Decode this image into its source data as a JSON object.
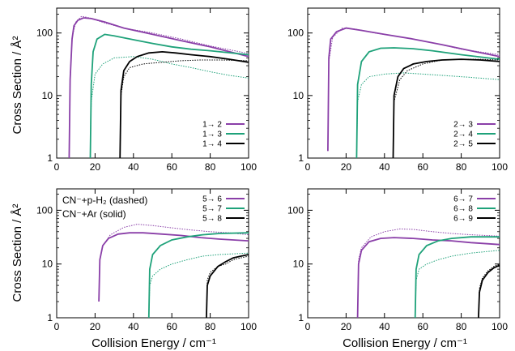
{
  "figure": {
    "ylabel": "Cross Section / Å²",
    "xlabel": "Collision Energy / cm⁻¹",
    "annotation": [
      "CN⁻+p-H₂ (dashed)",
      "CN⁻+Ar (solid)"
    ]
  },
  "chart_data": [
    {
      "type": "line",
      "panel": "top-left",
      "xlim": [
        0,
        100
      ],
      "ylim": [
        1,
        250
      ],
      "yscale": "log",
      "xticks": [
        "0",
        "20",
        "40",
        "60",
        "80",
        "100"
      ],
      "yticks": [
        "1",
        "10",
        "100"
      ],
      "legend": "bottom-right",
      "series": [
        {
          "name": "1→ 2",
          "color": "#8a3fa8",
          "solid": [
            [
              6.5,
              1
            ],
            [
              7,
              18
            ],
            [
              8,
              80
            ],
            [
              9,
              130
            ],
            [
              11,
              160
            ],
            [
              14,
              175
            ],
            [
              18,
              170
            ],
            [
              25,
              150
            ],
            [
              35,
              120
            ],
            [
              50,
              95
            ],
            [
              65,
              75
            ],
            [
              80,
              60
            ],
            [
              100,
              42
            ]
          ],
          "dashed": [
            [
              6.5,
              1
            ],
            [
              7,
              20
            ],
            [
              8,
              85
            ],
            [
              10,
              150
            ],
            [
              13,
              185
            ],
            [
              17,
              175
            ],
            [
              25,
              145
            ],
            [
              35,
              120
            ],
            [
              50,
              100
            ],
            [
              65,
              80
            ],
            [
              80,
              62
            ],
            [
              100,
              47
            ]
          ]
        },
        {
          "name": "1→ 3",
          "color": "#1fa27a",
          "solid": [
            [
              17.5,
              1
            ],
            [
              18,
              15
            ],
            [
              19,
              50
            ],
            [
              21,
              80
            ],
            [
              25,
              95
            ],
            [
              30,
              90
            ],
            [
              40,
              78
            ],
            [
              50,
              68
            ],
            [
              60,
              60
            ],
            [
              70,
              55
            ],
            [
              80,
              52
            ],
            [
              100,
              45
            ]
          ],
          "dashed": [
            [
              17.5,
              1
            ],
            [
              18,
              8
            ],
            [
              20,
              22
            ],
            [
              24,
              32
            ],
            [
              30,
              40
            ],
            [
              40,
              42
            ],
            [
              50,
              38
            ],
            [
              60,
              32
            ],
            [
              70,
              28
            ],
            [
              80,
              24
            ],
            [
              90,
              21
            ],
            [
              100,
              19
            ]
          ]
        },
        {
          "name": "1→ 4",
          "color": "#000000",
          "solid": [
            [
              33,
              1
            ],
            [
              33.5,
              12
            ],
            [
              35,
              25
            ],
            [
              38,
              35
            ],
            [
              42,
              42
            ],
            [
              48,
              48
            ],
            [
              55,
              50
            ],
            [
              62,
              48
            ],
            [
              70,
              45
            ],
            [
              80,
              42
            ],
            [
              90,
              38
            ],
            [
              100,
              34
            ]
          ],
          "dashed": [
            [
              33,
              1
            ],
            [
              33.5,
              10
            ],
            [
              35,
              20
            ],
            [
              38,
              28
            ],
            [
              45,
              32
            ],
            [
              55,
              34
            ],
            [
              65,
              36
            ],
            [
              75,
              37
            ],
            [
              85,
              37
            ],
            [
              100,
              36
            ]
          ]
        }
      ]
    },
    {
      "type": "line",
      "panel": "top-right",
      "xlim": [
        0,
        100
      ],
      "ylim": [
        1,
        250
      ],
      "yscale": "log",
      "xticks": [
        "0",
        "20",
        "40",
        "60",
        "80",
        "100"
      ],
      "yticks": [
        "1",
        "10",
        "100"
      ],
      "legend": "bottom-right",
      "series": [
        {
          "name": "2→ 3",
          "color": "#8a3fa8",
          "solid": [
            [
              10.5,
              1.3
            ],
            [
              11,
              40
            ],
            [
              12,
              80
            ],
            [
              15,
              105
            ],
            [
              20,
              120
            ],
            [
              28,
              110
            ],
            [
              40,
              95
            ],
            [
              55,
              80
            ],
            [
              70,
              65
            ],
            [
              85,
              52
            ],
            [
              100,
              42
            ]
          ],
          "dashed": [
            [
              10.5,
              1.3
            ],
            [
              11,
              35
            ],
            [
              13,
              85
            ],
            [
              18,
              120
            ],
            [
              25,
              115
            ],
            [
              35,
              100
            ],
            [
              50,
              85
            ],
            [
              65,
              70
            ],
            [
              80,
              55
            ],
            [
              100,
              45
            ]
          ]
        },
        {
          "name": "2→ 4",
          "color": "#1fa27a",
          "solid": [
            [
              25.5,
              1
            ],
            [
              26,
              15
            ],
            [
              28,
              35
            ],
            [
              32,
              50
            ],
            [
              38,
              57
            ],
            [
              45,
              58
            ],
            [
              55,
              56
            ],
            [
              65,
              52
            ],
            [
              80,
              45
            ],
            [
              100,
              38
            ]
          ],
          "dashed": [
            [
              25.5,
              1
            ],
            [
              26,
              8
            ],
            [
              28,
              15
            ],
            [
              32,
              20
            ],
            [
              40,
              22
            ],
            [
              50,
              23
            ],
            [
              60,
              22
            ],
            [
              70,
              21
            ],
            [
              80,
              20
            ],
            [
              100,
              18
            ]
          ]
        },
        {
          "name": "2→ 5",
          "color": "#000000",
          "solid": [
            [
              44.5,
              1
            ],
            [
              45,
              10
            ],
            [
              47,
              20
            ],
            [
              50,
              27
            ],
            [
              55,
              32
            ],
            [
              62,
              35
            ],
            [
              70,
              37
            ],
            [
              80,
              38
            ],
            [
              90,
              37
            ],
            [
              100,
              35
            ]
          ],
          "dashed": [
            [
              44.5,
              1
            ],
            [
              45,
              8
            ],
            [
              48,
              18
            ],
            [
              52,
              25
            ],
            [
              60,
              32
            ],
            [
              70,
              37
            ],
            [
              80,
              38
            ],
            [
              90,
              38
            ],
            [
              100,
              37
            ]
          ]
        }
      ]
    },
    {
      "type": "line",
      "panel": "bottom-left",
      "xlim": [
        0,
        100
      ],
      "ylim": [
        1,
        250
      ],
      "yscale": "log",
      "xticks": [
        "0",
        "20",
        "40",
        "60",
        "80",
        "100"
      ],
      "yticks": [
        "1",
        "10",
        "100"
      ],
      "legend": "top-right",
      "series": [
        {
          "name": "5→ 6",
          "color": "#8a3fa8",
          "solid": [
            [
              22,
              2
            ],
            [
              22.5,
              12
            ],
            [
              24,
              22
            ],
            [
              27,
              30
            ],
            [
              32,
              36
            ],
            [
              38,
              38
            ],
            [
              45,
              38
            ],
            [
              55,
              36
            ],
            [
              65,
              34
            ],
            [
              75,
              31
            ],
            [
              85,
              29
            ],
            [
              100,
              27
            ]
          ],
          "dashed": [
            [
              22,
              2
            ],
            [
              22.5,
              12
            ],
            [
              24,
              22
            ],
            [
              28,
              35
            ],
            [
              35,
              48
            ],
            [
              42,
              55
            ],
            [
              50,
              52
            ],
            [
              60,
              47
            ],
            [
              70,
              43
            ],
            [
              80,
              40
            ],
            [
              90,
              38
            ],
            [
              100,
              35
            ]
          ]
        },
        {
          "name": "5→ 7",
          "color": "#1fa27a",
          "solid": [
            [
              48,
              1
            ],
            [
              48.5,
              8
            ],
            [
              50,
              15
            ],
            [
              54,
              22
            ],
            [
              60,
              28
            ],
            [
              68,
              32
            ],
            [
              76,
              35
            ],
            [
              85,
              37
            ],
            [
              100,
              38
            ]
          ],
          "dashed": [
            [
              48,
              1
            ],
            [
              48.5,
              4
            ],
            [
              50,
              6
            ],
            [
              54,
              8
            ],
            [
              60,
              10
            ],
            [
              68,
              12
            ],
            [
              76,
              14
            ],
            [
              85,
              15
            ],
            [
              100,
              16
            ]
          ]
        },
        {
          "name": "5→ 8",
          "color": "#000000",
          "solid": [
            [
              78,
              1
            ],
            [
              78.5,
              4
            ],
            [
              80,
              6
            ],
            [
              84,
              9
            ],
            [
              88,
              11
            ],
            [
              92,
              13
            ],
            [
              96,
              14
            ],
            [
              100,
              15
            ]
          ],
          "dashed": [
            [
              78,
              1
            ],
            [
              78.5,
              5
            ],
            [
              80,
              7
            ],
            [
              84,
              9
            ],
            [
              88,
              10
            ],
            [
              92,
              12
            ],
            [
              96,
              13
            ],
            [
              100,
              14
            ]
          ]
        }
      ]
    },
    {
      "type": "line",
      "panel": "bottom-right",
      "xlim": [
        0,
        100
      ],
      "ylim": [
        1,
        250
      ],
      "yscale": "log",
      "xticks": [
        "0",
        "20",
        "40",
        "60",
        "80",
        "100"
      ],
      "yticks": [
        "1",
        "10",
        "100"
      ],
      "legend": "top-right",
      "series": [
        {
          "name": "6→ 7",
          "color": "#8a3fa8",
          "solid": [
            [
              26,
              1
            ],
            [
              26.5,
              10
            ],
            [
              28,
              18
            ],
            [
              32,
              26
            ],
            [
              38,
              30
            ],
            [
              45,
              31
            ],
            [
              55,
              30
            ],
            [
              65,
              28
            ],
            [
              75,
              27
            ],
            [
              85,
              25
            ],
            [
              100,
              23
            ]
          ],
          "dashed": [
            [
              26,
              1
            ],
            [
              26.5,
              12
            ],
            [
              28,
              20
            ],
            [
              33,
              32
            ],
            [
              40,
              40
            ],
            [
              48,
              45
            ],
            [
              55,
              44
            ],
            [
              65,
              40
            ],
            [
              75,
              37
            ],
            [
              85,
              35
            ],
            [
              100,
              33
            ]
          ]
        },
        {
          "name": "6→ 8",
          "color": "#1fa27a",
          "solid": [
            [
              56,
              1
            ],
            [
              56.5,
              8
            ],
            [
              58,
              15
            ],
            [
              62,
              22
            ],
            [
              68,
              27
            ],
            [
              75,
              30
            ],
            [
              85,
              32
            ],
            [
              100,
              32
            ]
          ],
          "dashed": [
            [
              56,
              1
            ],
            [
              56.5,
              5
            ],
            [
              58,
              8
            ],
            [
              62,
              10
            ],
            [
              68,
              12
            ],
            [
              75,
              14
            ],
            [
              85,
              16
            ],
            [
              100,
              18
            ]
          ]
        },
        {
          "name": "6→ 9",
          "color": "#000000",
          "solid": [
            [
              89,
              1
            ],
            [
              89.5,
              3
            ],
            [
              91,
              5
            ],
            [
              94,
              7
            ],
            [
              97,
              8.5
            ],
            [
              100,
              9.5
            ]
          ],
          "dashed": [
            [
              89,
              1
            ],
            [
              89.5,
              3.5
            ],
            [
              91,
              5.5
            ],
            [
              94,
              7.5
            ],
            [
              97,
              9
            ],
            [
              100,
              10
            ]
          ]
        }
      ]
    }
  ]
}
